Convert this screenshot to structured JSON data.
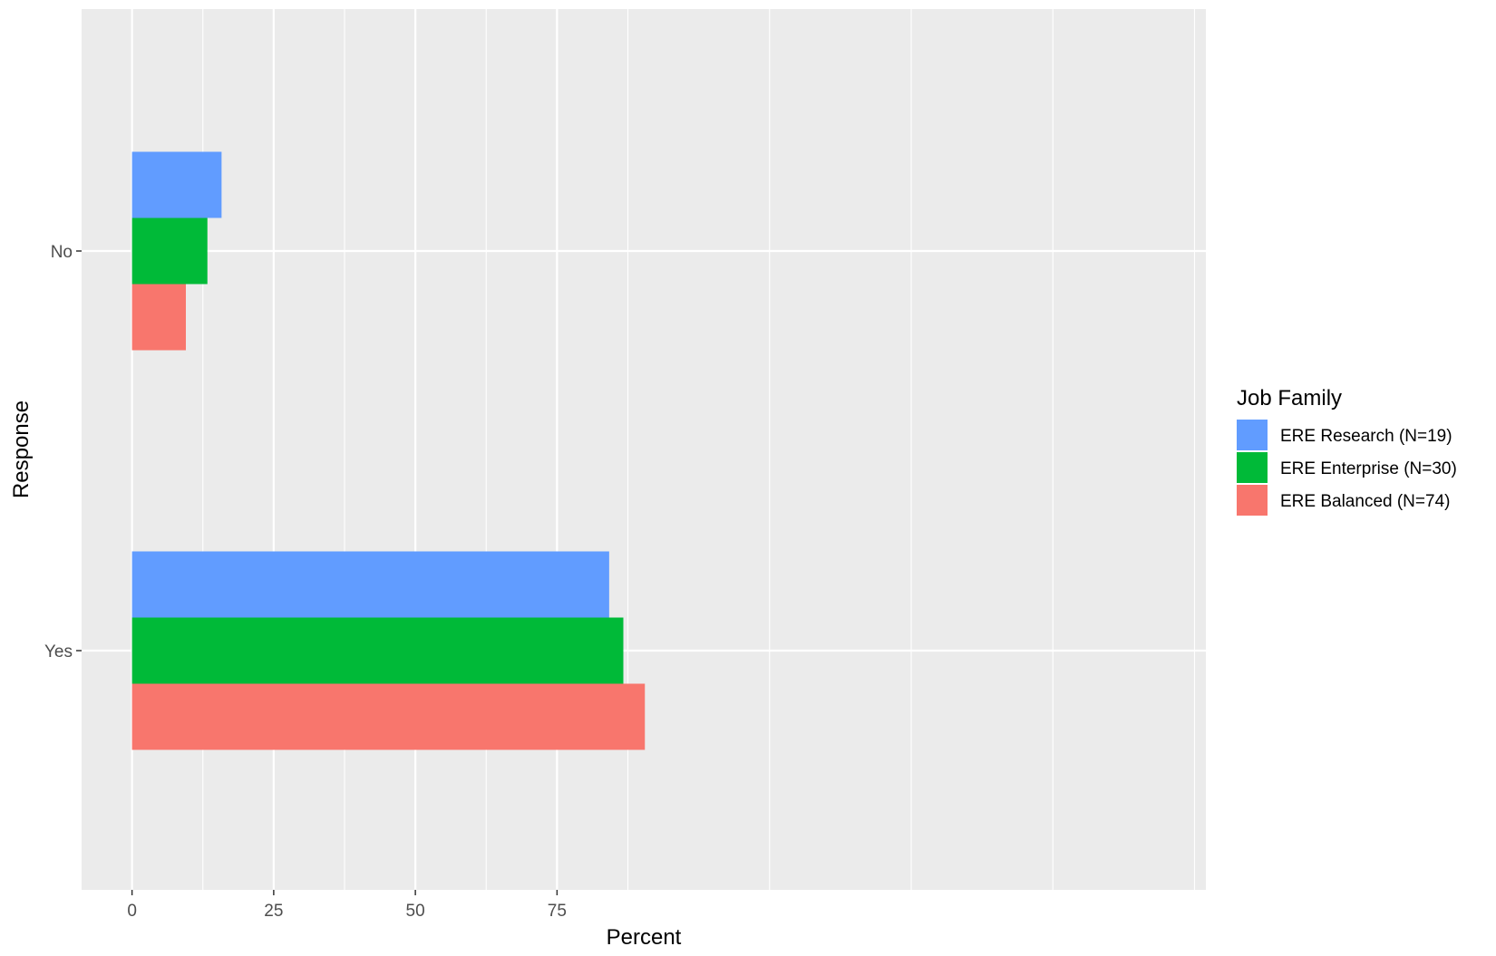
{
  "chart_data": {
    "type": "bar",
    "orientation": "horizontal",
    "categories": [
      "No",
      "Yes"
    ],
    "xlabel": "Percent",
    "ylabel": "Response",
    "xlim": [
      -8.9,
      189.5
    ],
    "xticks": [
      0,
      25,
      50,
      75
    ],
    "grid": true,
    "legend": {
      "title": "Job Family",
      "position": "right"
    },
    "series": [
      {
        "name": "ERE Research (N=19)",
        "color": "#619CFF",
        "values": [
          15.8,
          84.2
        ]
      },
      {
        "name": "ERE Enterprise (N=30)",
        "color": "#00BA38",
        "values": [
          13.3,
          86.7
        ]
      },
      {
        "name": "ERE Balanced (N=74)",
        "color": "#F8766D",
        "values": [
          9.5,
          90.5
        ]
      }
    ]
  }
}
